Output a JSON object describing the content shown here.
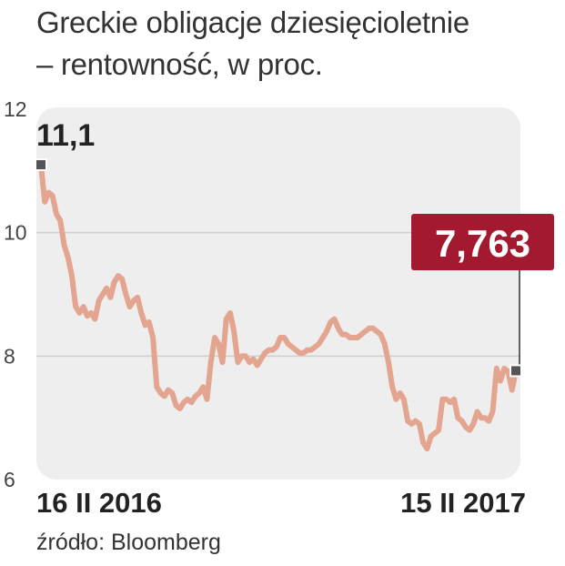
{
  "title_lines": [
    "Greckie obligacje dziesięcioletnie",
    "– rentowność, w proc."
  ],
  "source": "źródło: Bloomberg",
  "colors": {
    "line": "#e3a58f",
    "plot_bg": "#eeeeee",
    "grid": "#cfcfcf",
    "highlight_box": "#a3192f",
    "marker": "#555555"
  },
  "chart_data": {
    "type": "line",
    "ylim": [
      6,
      12
    ],
    "yticks": [
      6,
      8,
      10,
      12
    ],
    "xtick_labels": [
      "16 II 2016",
      "15 II 2017"
    ],
    "start_label": "11,1",
    "end_label": "7,763",
    "grid": "horizontal",
    "series": [
      {
        "values": [
          11.1,
          10.5,
          10.65,
          10.6,
          10.3,
          10.2,
          9.8,
          9.6,
          9.3,
          8.8,
          8.7,
          8.8,
          8.65,
          8.7,
          8.6,
          8.9,
          9.0,
          9.1,
          8.95,
          9.2,
          9.3,
          9.25,
          9.0,
          8.8,
          8.9,
          8.95,
          8.7,
          8.5,
          8.55,
          8.3,
          7.5,
          7.4,
          7.35,
          7.45,
          7.4,
          7.2,
          7.15,
          7.25,
          7.3,
          7.25,
          7.35,
          7.4,
          7.5,
          7.3,
          7.9,
          8.3,
          8.2,
          7.9,
          8.6,
          8.7,
          8.4,
          7.9,
          8.0,
          8.0,
          7.9,
          7.95,
          7.85,
          7.95,
          8.05,
          8.1,
          8.1,
          8.15,
          8.3,
          8.3,
          8.2,
          8.15,
          8.1,
          8.05,
          8.05,
          8.1,
          8.1,
          8.15,
          8.2,
          8.3,
          8.4,
          8.55,
          8.6,
          8.45,
          8.35,
          8.35,
          8.3,
          8.3,
          8.3,
          8.35,
          8.4,
          8.45,
          8.45,
          8.4,
          8.35,
          8.2,
          7.9,
          7.5,
          7.3,
          7.4,
          7.3,
          6.95,
          6.9,
          6.95,
          6.9,
          6.6,
          6.5,
          6.7,
          6.75,
          6.8,
          7.3,
          7.3,
          7.25,
          7.3,
          7.0,
          6.95,
          6.85,
          6.8,
          6.9,
          7.1,
          7.0,
          7.0,
          6.95,
          7.1,
          7.8,
          7.6,
          7.8,
          7.75,
          7.45,
          7.763
        ]
      }
    ]
  }
}
